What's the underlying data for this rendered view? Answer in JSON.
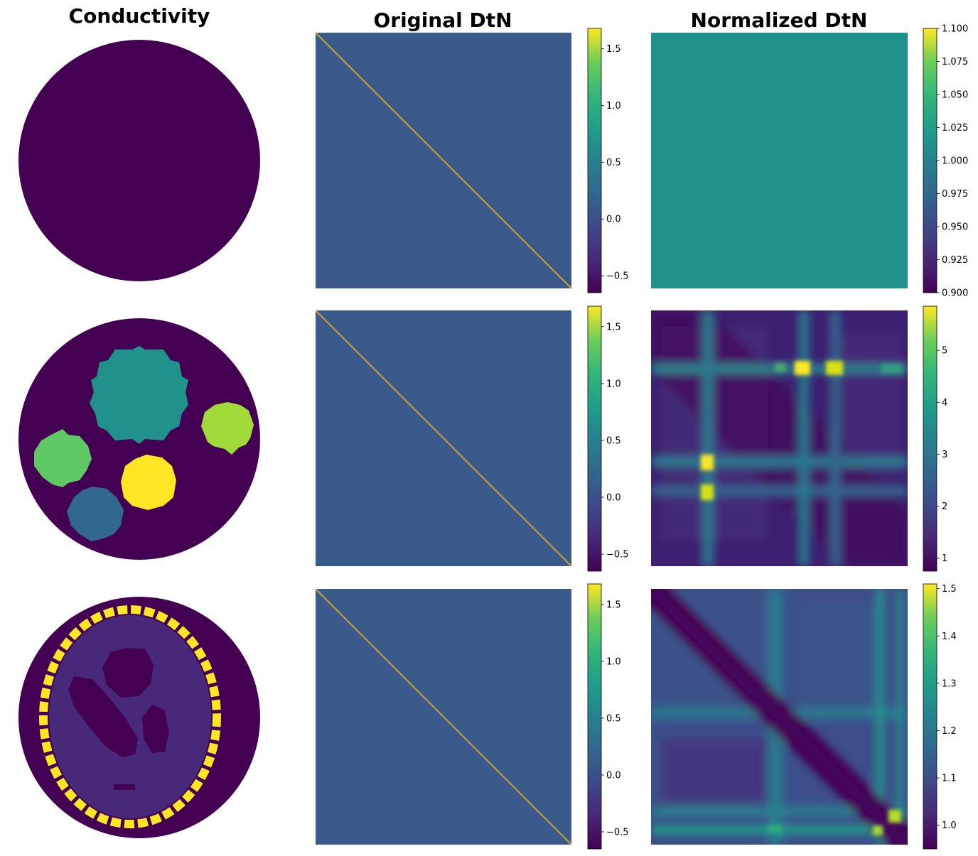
{
  "chart_data": {
    "type": "heatmap",
    "column_titles": [
      "Conductivity",
      "Original DtN",
      "Normalized DtN"
    ],
    "rows": [
      {
        "conductivity": {
          "type": "disk-image",
          "background": "#440154",
          "inclusions": []
        },
        "original_dtn": {
          "type": "heatmap",
          "pattern": "diagonal",
          "background_value": 0.0,
          "diagonal_value": 1.65,
          "colorbar": {
            "range": [
              -0.65,
              1.68
            ],
            "ticks": [
              -0.5,
              0.0,
              0.5,
              1.0,
              1.5
            ],
            "tick_labels": [
              "−0.5",
              "0.0",
              "0.5",
              "1.0",
              "1.5"
            ]
          }
        },
        "normalized_dtn": {
          "type": "heatmap",
          "pattern": "constant",
          "fill_value": 1.0,
          "colorbar": {
            "range": [
              0.9,
              1.1
            ],
            "ticks": [
              0.9,
              0.925,
              0.95,
              0.975,
              1.0,
              1.025,
              1.05,
              1.075,
              1.1
            ],
            "tick_labels": [
              "0.900",
              "0.925",
              "0.950",
              "0.975",
              "1.000",
              "1.025",
              "1.050",
              "1.075",
              "1.100"
            ]
          }
        }
      },
      {
        "conductivity": {
          "type": "disk-image",
          "background": "#440154",
          "inclusions": [
            {
              "label": "large-top",
              "color": "#21918c"
            },
            {
              "label": "right",
              "color": "#a0da39"
            },
            {
              "label": "left",
              "color": "#5ec962"
            },
            {
              "label": "center",
              "color": "#fde725"
            },
            {
              "label": "bottom-left",
              "color": "#31688e"
            }
          ]
        },
        "original_dtn": {
          "type": "heatmap",
          "pattern": "diagonal",
          "background_value": 0.0,
          "diagonal_value": 1.65,
          "colorbar": {
            "range": [
              -0.65,
              1.68
            ],
            "ticks": [
              -0.5,
              0.0,
              0.5,
              1.0,
              1.5
            ],
            "tick_labels": [
              "−0.5",
              "0.0",
              "0.5",
              "1.0",
              "1.5"
            ]
          }
        },
        "normalized_dtn": {
          "type": "heatmap",
          "pattern": "banded",
          "colorbar": {
            "range": [
              0.75,
              5.85
            ],
            "ticks": [
              1,
              2,
              3,
              4,
              5
            ],
            "tick_labels": [
              "1",
              "2",
              "3",
              "4",
              "5"
            ]
          }
        }
      },
      {
        "conductivity": {
          "type": "disk-image",
          "background": "#440154",
          "inclusions": [
            {
              "label": "ring",
              "color": "#fde725"
            },
            {
              "label": "interior",
              "color": "#482878"
            },
            {
              "label": "dark-blobs",
              "color": "#440154"
            }
          ]
        },
        "original_dtn": {
          "type": "heatmap",
          "pattern": "diagonal",
          "background_value": 0.0,
          "diagonal_value": 1.65,
          "colorbar": {
            "range": [
              -0.65,
              1.68
            ],
            "ticks": [
              -0.5,
              0.0,
              0.5,
              1.0,
              1.5
            ],
            "tick_labels": [
              "−0.5",
              "0.0",
              "0.5",
              "1.0",
              "1.5"
            ]
          }
        },
        "normalized_dtn": {
          "type": "heatmap",
          "pattern": "banded",
          "colorbar": {
            "range": [
              0.95,
              1.51
            ],
            "ticks": [
              1.0,
              1.1,
              1.2,
              1.3,
              1.4,
              1.5
            ],
            "tick_labels": [
              "1.0",
              "1.1",
              "1.2",
              "1.3",
              "1.4",
              "1.5"
            ]
          }
        }
      }
    ],
    "colormap": "viridis",
    "axes_visible": false
  }
}
